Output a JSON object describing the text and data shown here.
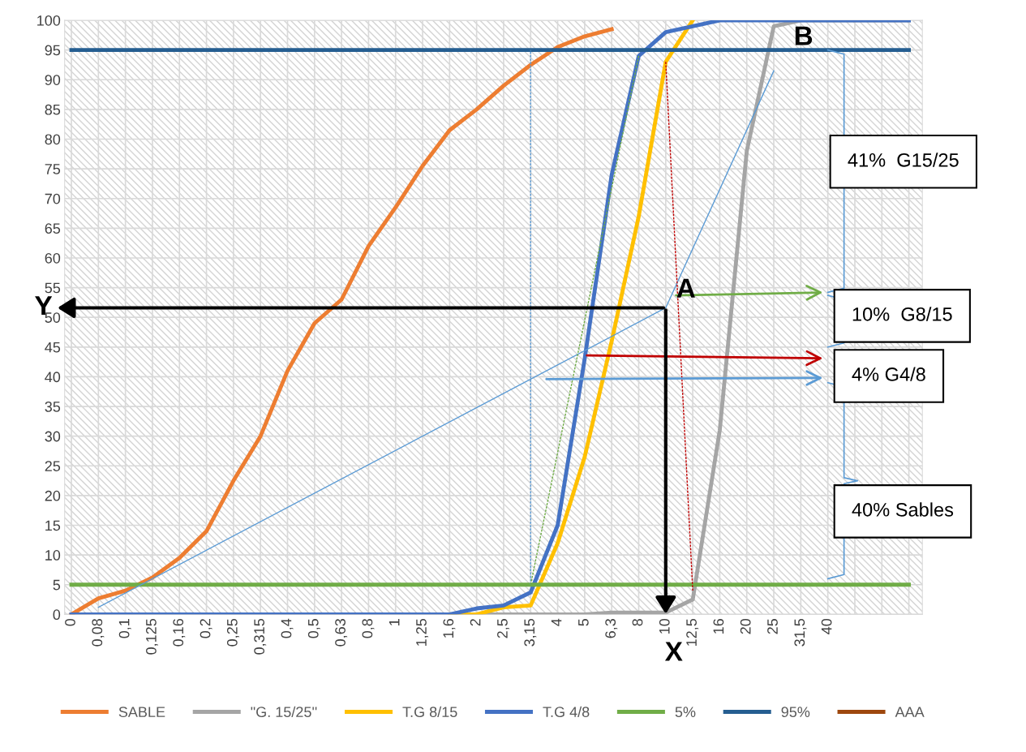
{
  "chart_data": {
    "type": "line",
    "categories": [
      "0",
      "0,08",
      "0,1",
      "0,125",
      "0,16",
      "0,2",
      "0,25",
      "0,315",
      "0,4",
      "0,5",
      "0,63",
      "0,8",
      "1",
      "1,25",
      "1,6",
      "2",
      "2,5",
      "3,15",
      "4",
      "5",
      "6,3",
      "8",
      "10",
      "12,5",
      "16",
      "20",
      "25",
      "31,5",
      "40",
      null,
      null,
      null
    ],
    "series": [
      {
        "name": "SABLE",
        "color": "#ed7d31",
        "values": [
          0,
          2.7,
          4,
          6.2,
          9.5,
          14,
          22.5,
          30,
          41,
          49,
          53,
          62,
          68.5,
          75.5,
          81.5,
          85,
          89,
          92.5,
          95.5,
          97.3,
          98.5,
          null,
          null,
          null,
          null,
          null,
          null,
          null,
          null,
          null,
          null,
          null
        ]
      },
      {
        "name": "\"G. 15/25''",
        "color": "#a5a5a5",
        "values": [
          0,
          0,
          0,
          0,
          0,
          0,
          0,
          0,
          0,
          0,
          0,
          0,
          0,
          0,
          0,
          0,
          0,
          0,
          0,
          0,
          0.3,
          0.3,
          0.3,
          2.5,
          31,
          78,
          99,
          100,
          100,
          100,
          100,
          100
        ]
      },
      {
        "name": "T.G 8/15",
        "color": "#ffc000",
        "values": [
          null,
          null,
          null,
          null,
          null,
          null,
          null,
          null,
          null,
          null,
          null,
          null,
          null,
          null,
          0,
          0,
          1.2,
          1.5,
          12,
          26.5,
          46,
          67,
          93,
          100,
          null,
          null,
          null,
          null,
          null,
          null,
          null,
          null
        ]
      },
      {
        "name": "T.G 4/8",
        "color": "#4472c4",
        "values": [
          0,
          0,
          0,
          0,
          0,
          0,
          0,
          0,
          0,
          0,
          0,
          0,
          0,
          0,
          0,
          1,
          1.5,
          3.7,
          15,
          43,
          74,
          94,
          98,
          99,
          100,
          100,
          100,
          100,
          100,
          100,
          100,
          100
        ]
      },
      {
        "name": "5%",
        "color": "#70ad47",
        "values": [
          5,
          5,
          5,
          5,
          5,
          5,
          5,
          5,
          5,
          5,
          5,
          5,
          5,
          5,
          5,
          5,
          5,
          5,
          5,
          5,
          5,
          5,
          5,
          5,
          5,
          5,
          5,
          5,
          5,
          5,
          5,
          5
        ]
      },
      {
        "name": "95%",
        "color": "#255e91",
        "values": [
          95,
          95,
          95,
          95,
          95,
          95,
          95,
          95,
          95,
          95,
          95,
          95,
          95,
          95,
          95,
          95,
          95,
          95,
          95,
          95,
          95,
          95,
          95,
          95,
          95,
          95,
          95,
          95,
          95,
          95,
          95,
          95
        ]
      },
      {
        "name": "AAA",
        "color": "#9e480e",
        "values": [
          null,
          null,
          null,
          null,
          null,
          null,
          null,
          null,
          null,
          null,
          null,
          null,
          null,
          null,
          null,
          null,
          null,
          null,
          null,
          null,
          null,
          null,
          null,
          null,
          null,
          null,
          null,
          null,
          null,
          null,
          null,
          null
        ]
      },
      {
        "color": "#5b9bd5",
        "x": [
          "0,08",
          "10",
          "25"
        ],
        "values": [
          1.2,
          51.6,
          91.5
        ]
      },
      {
        "color": "#5b9bd5",
        "x": [
          "3,15",
          "3,15"
        ],
        "values": [
          5,
          95
        ],
        "line_style": "dashed"
      },
      {
        "color": "#70ad47",
        "x": [
          "3,15",
          "8"
        ],
        "values": [
          5,
          94
        ],
        "line_style": "dashed"
      },
      {
        "color": "#c00000",
        "x": [
          "10",
          "12,5"
        ],
        "values": [
          93,
          4
        ],
        "line_style": "dashed"
      }
    ],
    "annotations": [
      {
        "text": "A",
        "x": "10",
        "y": 51.6
      },
      "B",
      {
        "text": "X",
        "x": "10",
        "y": 0
      },
      "Y",
      "41%  G15/25",
      "10%  G8/15",
      "4% G4/8",
      "40% Sables"
    ],
    "ylim": [
      0,
      100
    ],
    "yticks": [
      0,
      5,
      10,
      15,
      20,
      25,
      30,
      35,
      40,
      45,
      50,
      55,
      60,
      65,
      70,
      75,
      80,
      85,
      90,
      95,
      100
    ],
    "grid": true,
    "legend": "bottom",
    "marker": "none",
    "line_style": "solid"
  }
}
